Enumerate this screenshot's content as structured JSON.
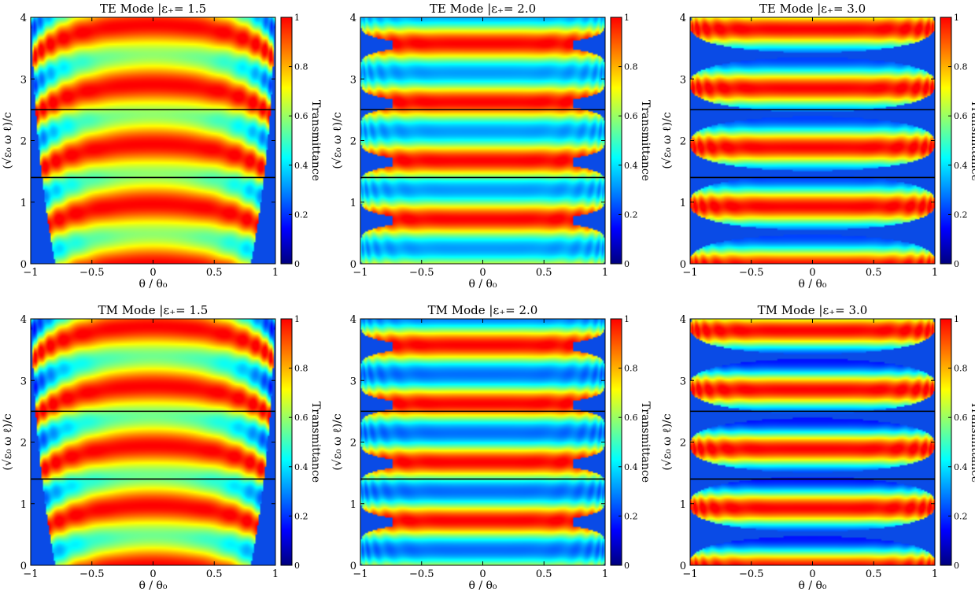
{
  "chart_data": [
    {
      "type": "heatmap",
      "title": "TE Mode |ε₊= 1.5",
      "mode": "TE",
      "eps": 1.5,
      "xlabel": "θ / θ₀",
      "ylabel": "(√ε₀ ω ℓ)/c",
      "colorbar_label": "Transmittance",
      "xlim": [
        -1,
        1
      ],
      "ylim": [
        0,
        4
      ],
      "zlim": [
        0,
        1
      ],
      "xticks": [
        "−1",
        "−0.5",
        "0",
        "0.5",
        "1"
      ],
      "yticks": [
        "0",
        "1",
        "2",
        "3",
        "4"
      ],
      "cbticks": [
        "0",
        "0.2",
        "0.4",
        "0.6",
        "0.8",
        "1"
      ],
      "hlines": [
        1.4,
        2.5
      ]
    },
    {
      "type": "heatmap",
      "title": "TE Mode |ε₊= 2.0",
      "mode": "TE",
      "eps": 2.0,
      "xlabel": "θ / θ₀",
      "ylabel": "(√ε₀ ω ℓ)/c",
      "colorbar_label": "Transmittance",
      "xlim": [
        -1,
        1
      ],
      "ylim": [
        0,
        4
      ],
      "zlim": [
        0,
        1
      ],
      "xticks": [
        "−1",
        "−0.5",
        "0",
        "0.5",
        "1"
      ],
      "yticks": [
        "0",
        "1",
        "2",
        "3",
        "4"
      ],
      "cbticks": [
        "0",
        "0.2",
        "0.4",
        "0.6",
        "0.8",
        "1"
      ],
      "hlines": [
        1.4,
        2.5
      ]
    },
    {
      "type": "heatmap",
      "title": "TE Mode |ε₊= 3.0",
      "mode": "TE",
      "eps": 3.0,
      "xlabel": "θ / θ₀",
      "ylabel": "(√ε₀ ω ℓ)/c",
      "colorbar_label": "Transmittance",
      "xlim": [
        -1,
        1
      ],
      "ylim": [
        0,
        4
      ],
      "zlim": [
        0,
        1
      ],
      "xticks": [
        "−1",
        "−0.5",
        "0",
        "0.5",
        "1"
      ],
      "yticks": [
        "0",
        "1",
        "2",
        "3",
        "4"
      ],
      "cbticks": [
        "0",
        "0.2",
        "0.4",
        "0.6",
        "0.8",
        "1"
      ],
      "hlines": [
        1.4,
        2.5
      ]
    },
    {
      "type": "heatmap",
      "title": "TM Mode |ε₊= 1.5",
      "mode": "TM",
      "eps": 1.5,
      "xlabel": "θ / θ₀",
      "ylabel": "(√ε₀ ω ℓ)/c",
      "colorbar_label": "Transmittance",
      "xlim": [
        -1,
        1
      ],
      "ylim": [
        0,
        4
      ],
      "zlim": [
        0,
        1
      ],
      "xticks": [
        "−1",
        "−0.5",
        "0",
        "0.5",
        "1"
      ],
      "yticks": [
        "0",
        "1",
        "2",
        "3",
        "4"
      ],
      "cbticks": [
        "0",
        "0.2",
        "0.4",
        "0.6",
        "0.8",
        "1"
      ],
      "hlines": [
        1.4,
        2.5
      ]
    },
    {
      "type": "heatmap",
      "title": "TM Mode |ε₊= 2.0",
      "mode": "TM",
      "eps": 2.0,
      "xlabel": "θ / θ₀",
      "ylabel": "(√ε₀ ω ℓ)/c",
      "colorbar_label": "Transmittance",
      "xlim": [
        -1,
        1
      ],
      "ylim": [
        0,
        4
      ],
      "zlim": [
        0,
        1
      ],
      "xticks": [
        "−1",
        "−0.5",
        "0",
        "0.5",
        "1"
      ],
      "yticks": [
        "0",
        "1",
        "2",
        "3",
        "4"
      ],
      "cbticks": [
        "0",
        "0.2",
        "0.4",
        "0.6",
        "0.8",
        "1"
      ],
      "hlines": [
        1.4,
        2.5
      ]
    },
    {
      "type": "heatmap",
      "title": "TM Mode |ε₊= 3.0",
      "mode": "TM",
      "eps": 3.0,
      "xlabel": "θ / θ₀",
      "ylabel": "(√ε₀ ω ℓ)/c",
      "colorbar_label": "Transmittance",
      "xlim": [
        -1,
        1
      ],
      "ylim": [
        0,
        4
      ],
      "zlim": [
        0,
        1
      ],
      "xticks": [
        "−1",
        "−0.5",
        "0",
        "0.5",
        "1"
      ],
      "yticks": [
        "0",
        "1",
        "2",
        "3",
        "4"
      ],
      "cbticks": [
        "0",
        "0.2",
        "0.4",
        "0.6",
        "0.8",
        "1"
      ],
      "hlines": [
        1.4,
        2.5
      ]
    }
  ],
  "colormap": {
    "name": "jet",
    "stops": [
      "#00007f",
      "#0000ff",
      "#007fff",
      "#00ffff",
      "#7fff7f",
      "#ffff00",
      "#ff7f00",
      "#ff0000"
    ],
    "mask_color": "#0a4be6",
    "hline_color": "#000000"
  }
}
